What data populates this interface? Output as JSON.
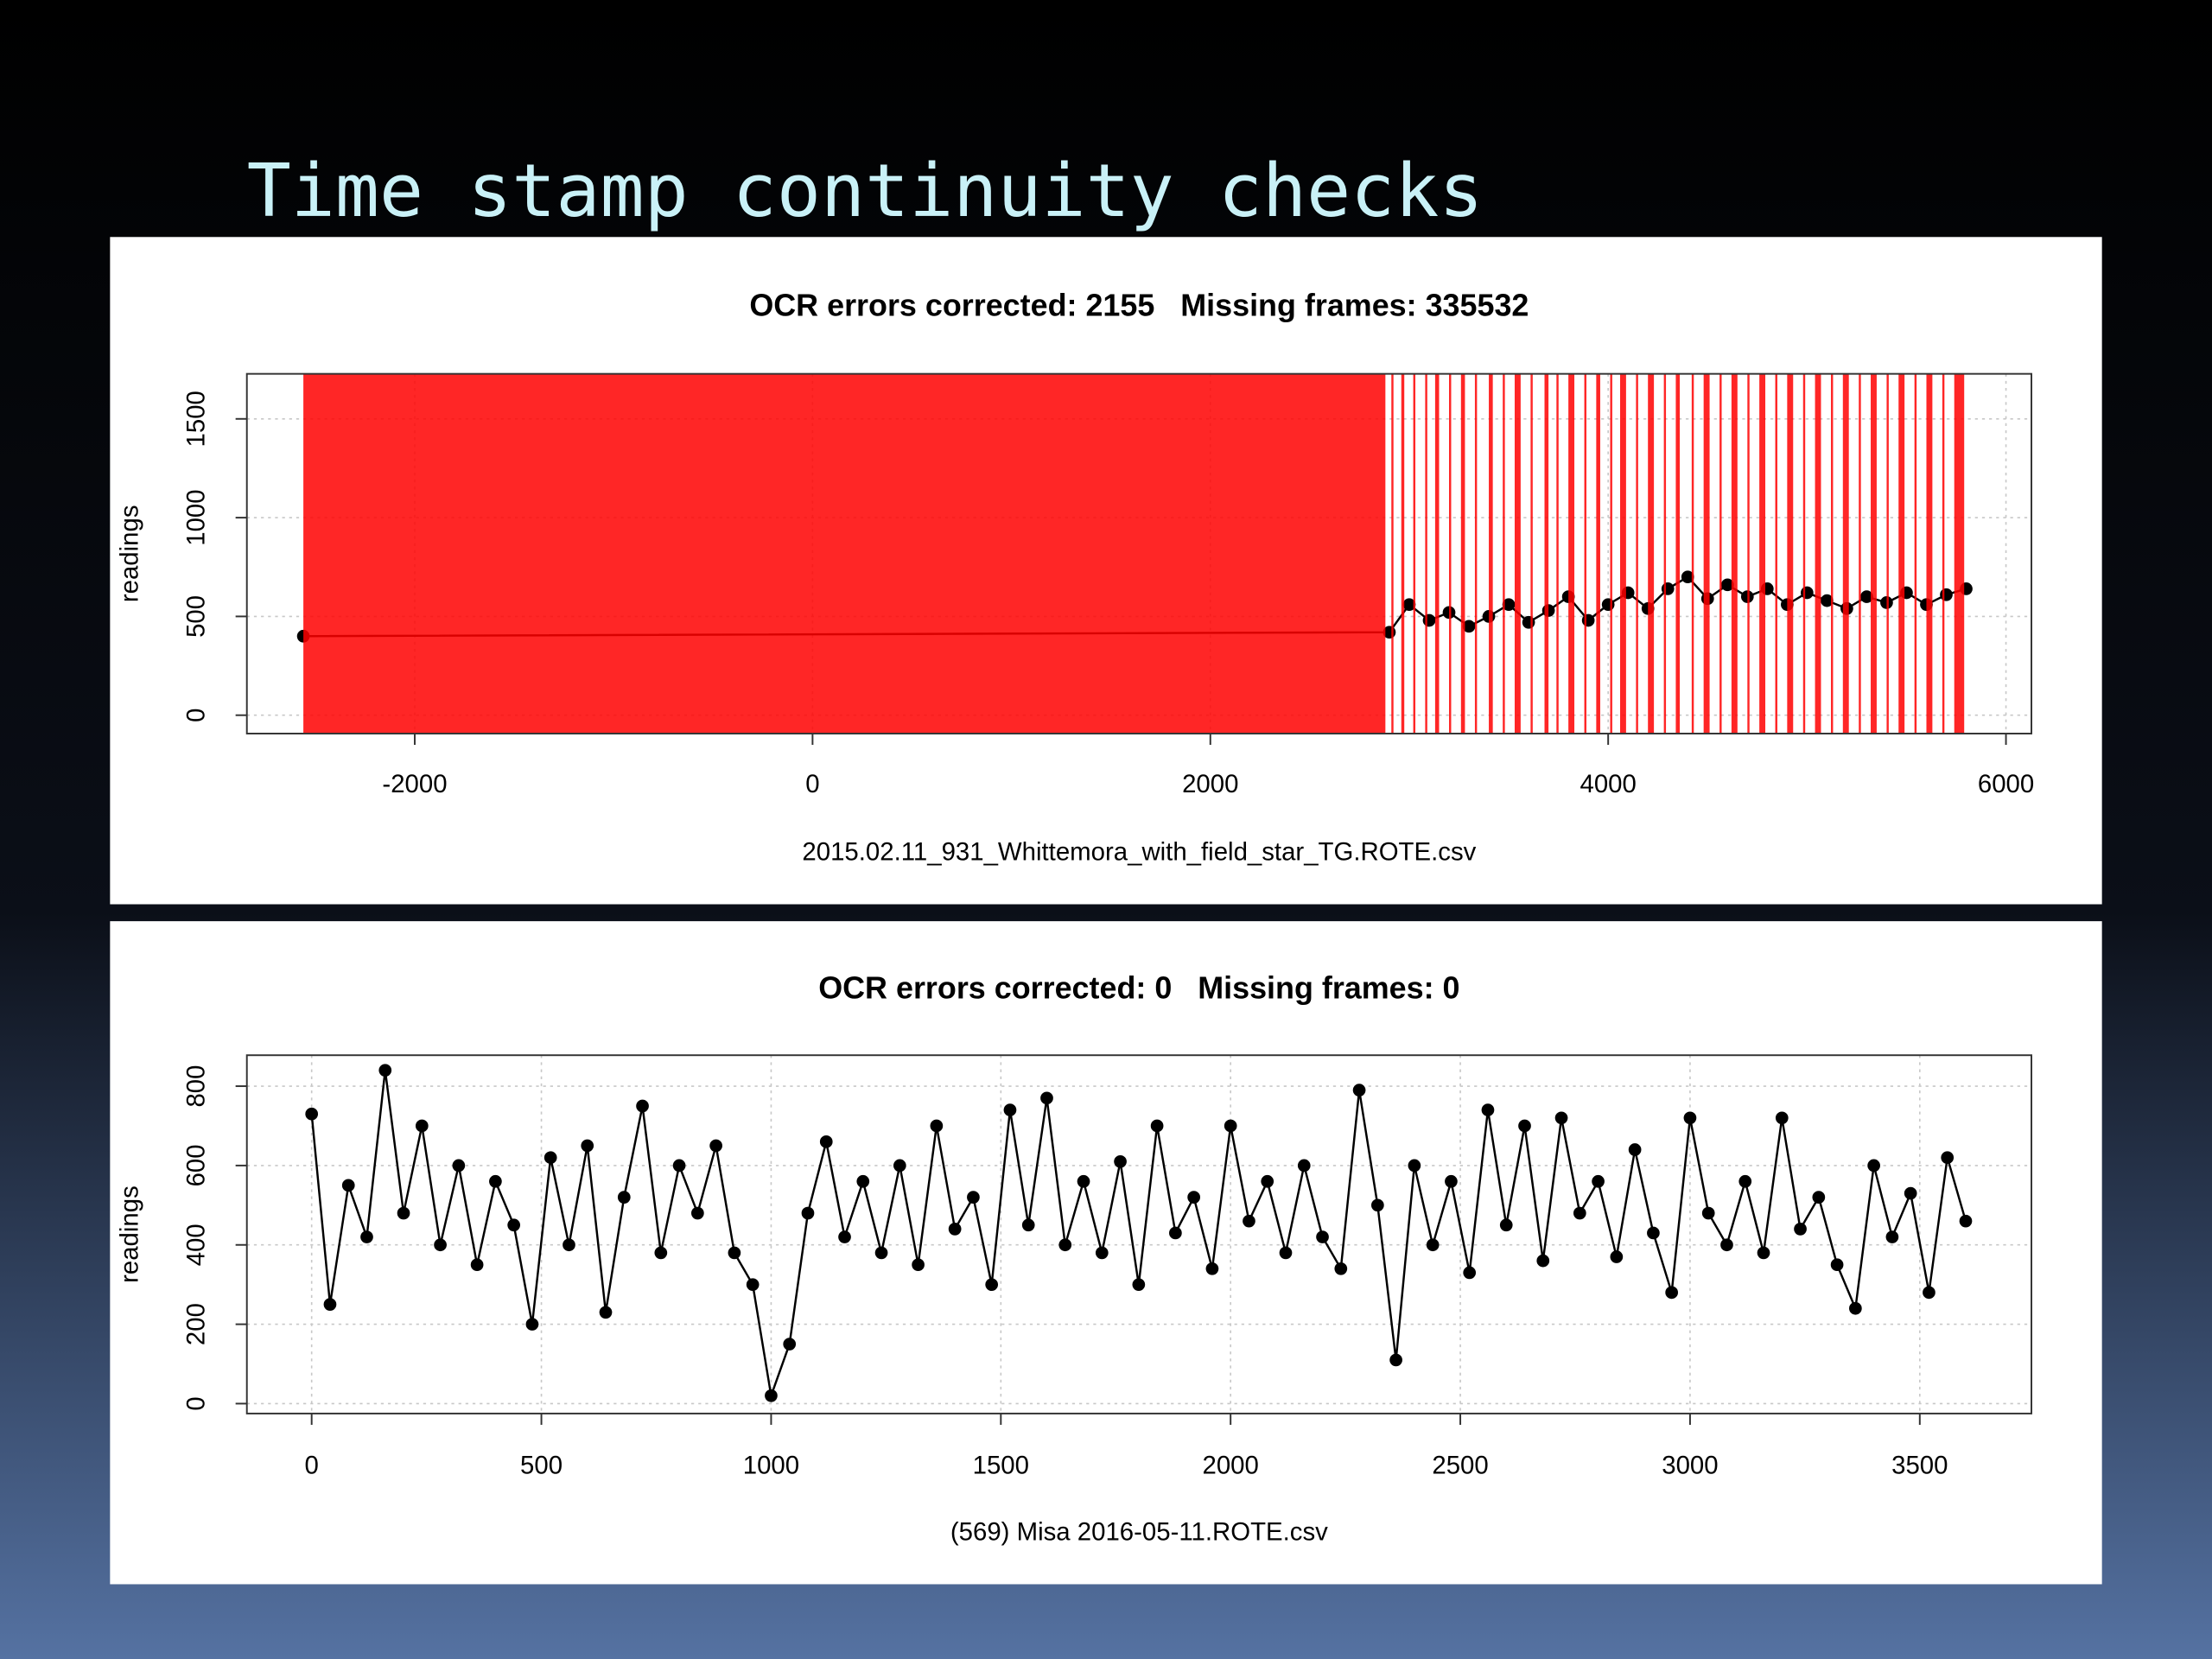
{
  "title": "Time stamp continuity checks",
  "chart_data": [
    {
      "type": "line",
      "title": "OCR errors corrected: 2155   Missing frames: 335532",
      "xlabel": "2015.02.11_931_Whittemora_with_field_star_TG.ROTE.csv",
      "ylabel": "readings",
      "x": [
        -2560,
        2900,
        3000,
        3100,
        3200,
        3300,
        3400,
        3500,
        3600,
        3700,
        3800,
        3900,
        4000,
        4100,
        4200,
        4300,
        4400,
        4500,
        4600,
        4700,
        4800,
        4900,
        5000,
        5100,
        5200,
        5300,
        5400,
        5500,
        5600,
        5700,
        5800
      ],
      "values": [
        400,
        420,
        560,
        480,
        520,
        450,
        500,
        560,
        470,
        530,
        600,
        480,
        560,
        620,
        540,
        640,
        700,
        590,
        660,
        600,
        640,
        560,
        620,
        580,
        540,
        600,
        570,
        620,
        560,
        610,
        640
      ],
      "color": "#000000",
      "missing_spans": [
        [
          -2560,
          2880
        ],
        [
          2910,
          2915
        ],
        [
          2960,
          2975
        ],
        [
          3020,
          3030
        ],
        [
          3080,
          3090
        ],
        [
          3130,
          3150
        ],
        [
          3200,
          3210
        ],
        [
          3260,
          3280
        ],
        [
          3330,
          3340
        ],
        [
          3400,
          3420
        ],
        [
          3470,
          3480
        ],
        [
          3530,
          3560
        ],
        [
          3610,
          3620
        ],
        [
          3680,
          3700
        ],
        [
          3740,
          3750
        ],
        [
          3800,
          3830
        ],
        [
          3880,
          3890
        ],
        [
          3940,
          3960
        ],
        [
          4010,
          4020
        ],
        [
          4060,
          4090
        ],
        [
          4140,
          4150
        ],
        [
          4200,
          4230
        ],
        [
          4280,
          4290
        ],
        [
          4340,
          4360
        ],
        [
          4420,
          4430
        ],
        [
          4480,
          4510
        ],
        [
          4560,
          4570
        ],
        [
          4620,
          4650
        ],
        [
          4700,
          4710
        ],
        [
          4760,
          4790
        ],
        [
          4840,
          4850
        ],
        [
          4900,
          4930
        ],
        [
          4980,
          4990
        ],
        [
          5040,
          5070
        ],
        [
          5120,
          5130
        ],
        [
          5180,
          5210
        ],
        [
          5260,
          5270
        ],
        [
          5320,
          5350
        ],
        [
          5400,
          5410
        ],
        [
          5460,
          5490
        ],
        [
          5540,
          5550
        ],
        [
          5600,
          5630
        ],
        [
          5680,
          5690
        ],
        [
          5740,
          5790
        ]
      ],
      "missing_color": "#ff0000",
      "xlim": [
        -2844,
        6128
      ],
      "ylim": [
        -93,
        1728
      ],
      "xticks": [
        -2000,
        0,
        2000,
        4000,
        6000
      ],
      "yticks": [
        0,
        500,
        1000,
        1500
      ],
      "grid": true
    },
    {
      "type": "line",
      "title": "OCR errors corrected: 0   Missing frames: 0",
      "xlabel": "(569) Misa 2016-05-11.ROTE.csv",
      "ylabel": "readings",
      "x": [
        0,
        40,
        80,
        120,
        160,
        200,
        240,
        280,
        320,
        360,
        400,
        440,
        480,
        520,
        560,
        600,
        640,
        680,
        720,
        760,
        800,
        840,
        880,
        920,
        960,
        1000,
        1040,
        1080,
        1120,
        1160,
        1200,
        1240,
        1280,
        1320,
        1360,
        1400,
        1440,
        1480,
        1520,
        1560,
        1600,
        1640,
        1680,
        1720,
        1760,
        1800,
        1840,
        1880,
        1920,
        1960,
        2000,
        2040,
        2080,
        2120,
        2160,
        2200,
        2240,
        2280,
        2320,
        2360,
        2400,
        2440,
        2480,
        2520,
        2560,
        2600,
        2640,
        2680,
        2720,
        2760,
        2800,
        2840,
        2880,
        2920,
        2960,
        3000,
        3040,
        3080,
        3120,
        3160,
        3200,
        3240,
        3280,
        3320,
        3360,
        3400,
        3440,
        3480,
        3520,
        3560,
        3600
      ],
      "values": [
        730,
        250,
        550,
        420,
        840,
        480,
        700,
        400,
        600,
        350,
        560,
        450,
        200,
        620,
        400,
        650,
        230,
        520,
        750,
        380,
        600,
        480,
        650,
        380,
        300,
        20,
        150,
        480,
        660,
        420,
        560,
        380,
        600,
        350,
        700,
        440,
        520,
        300,
        740,
        450,
        770,
        400,
        560,
        380,
        610,
        300,
        700,
        430,
        520,
        340,
        700,
        460,
        560,
        380,
        600,
        420,
        340,
        790,
        500,
        110,
        600,
        400,
        560,
        330,
        740,
        450,
        700,
        360,
        720,
        480,
        560,
        370,
        640,
        430,
        280,
        720,
        480,
        400,
        560,
        380,
        720,
        440,
        520,
        350,
        240,
        600,
        420,
        530,
        280,
        620,
        460
      ],
      "color": "#000000",
      "xlim": [
        -141,
        3743
      ],
      "ylim": [
        -25,
        878
      ],
      "xticks": [
        0,
        500,
        1000,
        1500,
        2000,
        2500,
        3000,
        3500
      ],
      "yticks": [
        0,
        200,
        400,
        600,
        800
      ],
      "grid": true
    }
  ]
}
